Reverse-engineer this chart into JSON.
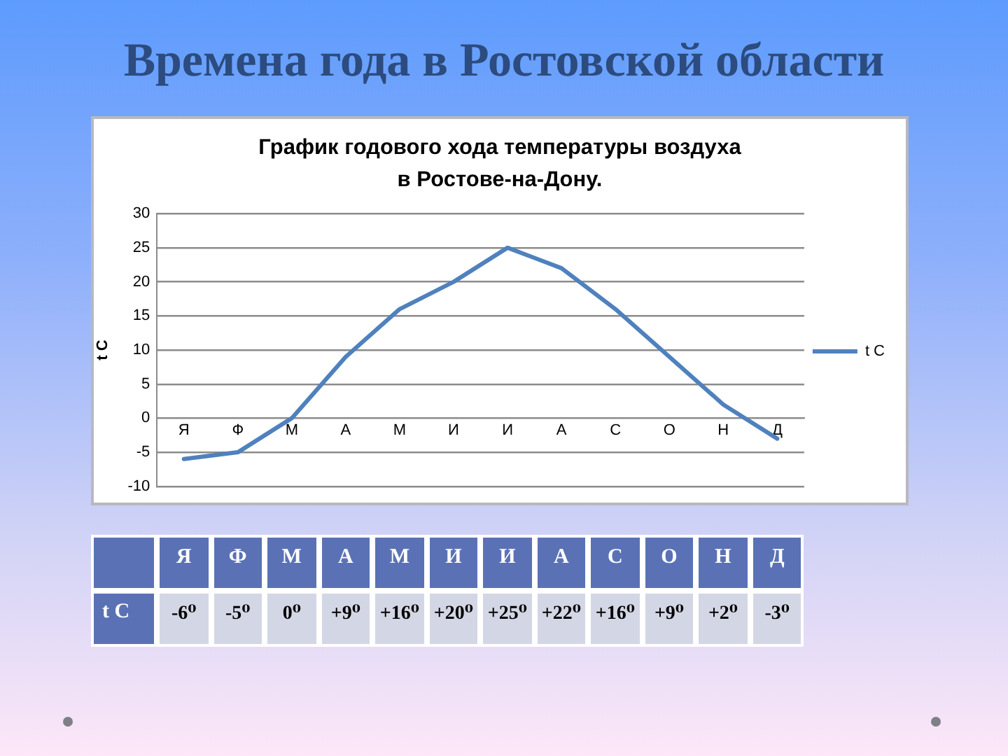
{
  "chart_data": {
    "type": "line",
    "title": "Времена года в Ростовской области",
    "subtitle": "График годового хода температуры воздуха\nв Ростове-на-Дону.",
    "ylabel": "t C",
    "categories": [
      "Я",
      "Ф",
      "М",
      "А",
      "М",
      "И",
      "И",
      "А",
      "С",
      "О",
      "Н",
      "Д"
    ],
    "series": [
      {
        "name": "t C",
        "color": "#4f81bd",
        "values": [
          -6,
          -5,
          0,
          9,
          16,
          20,
          25,
          22,
          16,
          9,
          2,
          -3
        ],
        "value_labels": [
          "-6⁰",
          "-5⁰",
          "0⁰",
          "+9⁰",
          "+16⁰",
          "+20⁰",
          "+25⁰",
          "+22⁰",
          "+16⁰",
          "+9⁰",
          "+2⁰",
          "-3⁰"
        ]
      }
    ],
    "ylim": [
      -10,
      30
    ],
    "yticks": [
      -10,
      -5,
      0,
      5,
      10,
      15,
      20,
      25,
      30
    ],
    "grid": "y",
    "legend": "right",
    "marker": "none",
    "line_style": "solid"
  }
}
